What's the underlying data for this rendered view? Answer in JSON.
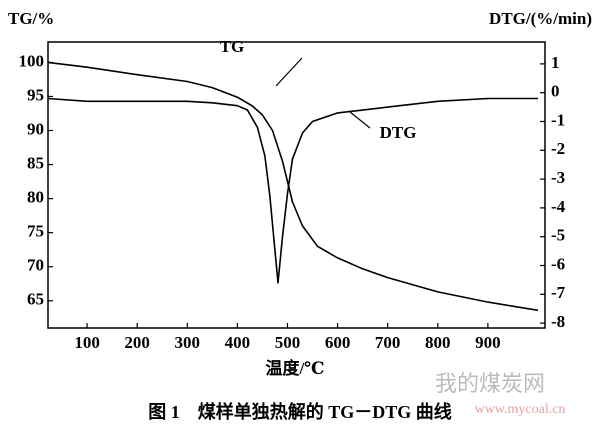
{
  "chart_data": {
    "type": "line",
    "title": "图 1　煤样单独热解的 TG－DTG 曲线",
    "y_label": "TG/%",
    "y2_label": "DTG/(%/min)",
    "x_label": "温度/℃",
    "annotations": [
      "TG",
      "DTG"
    ],
    "watermark": [
      "我的煤炭网",
      "www.mycoal.cn"
    ],
    "xlim": [
      22,
      1014
    ],
    "xticks": [
      100,
      200,
      300,
      400,
      500,
      600,
      700,
      800,
      900
    ],
    "ylim": [
      61,
      103
    ],
    "yticks": [
      65,
      70,
      75,
      80,
      85,
      90,
      95,
      100
    ],
    "y2lim": [
      -8.17,
      1.76
    ],
    "y2ticks": [
      -8,
      -7,
      -6,
      -5,
      -4,
      -3,
      -2,
      -1,
      0,
      1
    ],
    "series": [
      {
        "name": "TG",
        "color": "#000000",
        "x": [
          22,
          100,
          200,
          300,
          350,
          400,
          430,
          450,
          470,
          490,
          500,
          510,
          530,
          560,
          600,
          650,
          700,
          800,
          900,
          1000
        ],
        "values": [
          100,
          99.3,
          98.2,
          97.2,
          96.3,
          94.9,
          93.6,
          92.3,
          90,
          85.5,
          82.5,
          79.5,
          76,
          73,
          71.3,
          69.7,
          68.4,
          66.3,
          64.8,
          63.6
        ]
      },
      {
        "name": "DTG",
        "color": "#000000",
        "axis": "y2",
        "x": [
          22,
          100,
          200,
          300,
          350,
          400,
          420,
          440,
          455,
          465,
          475,
          481,
          490,
          500,
          510,
          530,
          550,
          600,
          700,
          800,
          900,
          1000
        ],
        "values": [
          -0.2,
          -0.3,
          -0.3,
          -0.3,
          -0.35,
          -0.45,
          -0.6,
          -1.2,
          -2.2,
          -3.6,
          -5.5,
          -6.6,
          -5,
          -3.5,
          -2.3,
          -1.4,
          -1,
          -0.7,
          -0.5,
          -0.3,
          -0.2,
          -0.2
        ]
      }
    ]
  }
}
